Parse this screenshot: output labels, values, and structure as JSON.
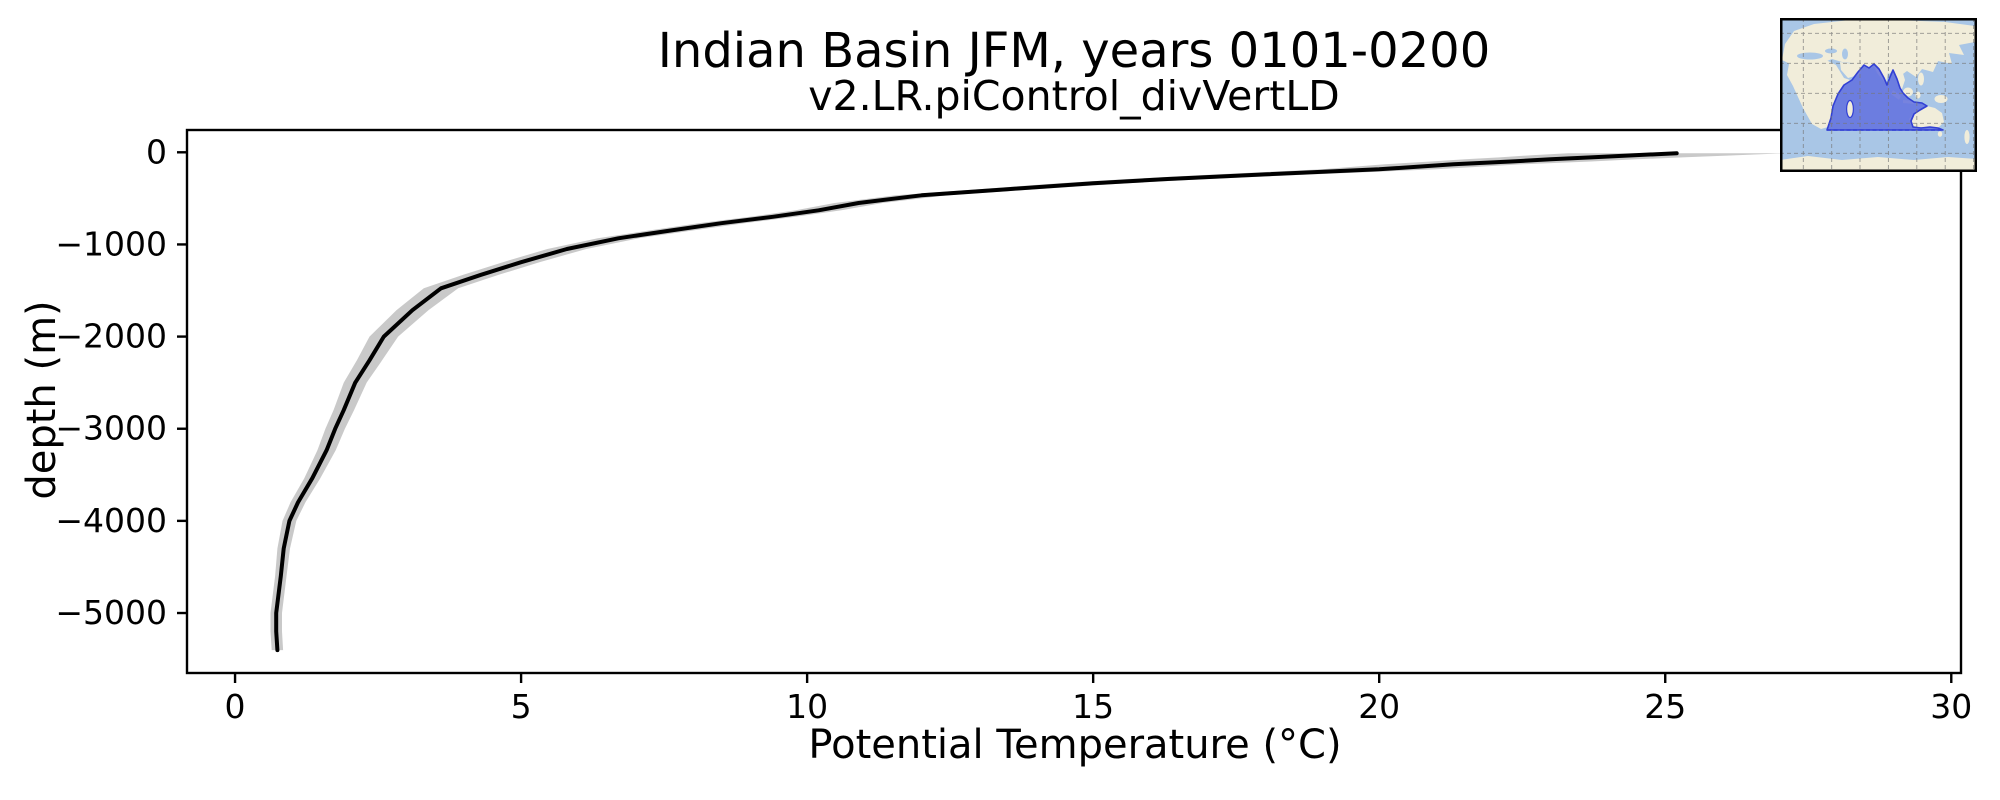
{
  "chart_data": {
    "type": "line",
    "title": "Indian Basin JFM, years 0101-0200",
    "subtitle": "v2.LR.piControl_divVertLD",
    "xlabel": "Potential Temperature (°C)",
    "ylabel": "depth (m)",
    "xlim": [
      -0.84,
      30.17
    ],
    "ylim": [
      -5651,
      242
    ],
    "xticks": [
      0,
      5,
      10,
      15,
      20,
      25,
      30
    ],
    "yticks": [
      0,
      -1000,
      -2000,
      -3000,
      -4000,
      -5000
    ],
    "grid": false,
    "legend_position": "none",
    "line_color": "#000000",
    "band_color": "#c9c9c9",
    "series": [
      {
        "name": "mean potential temperature profile",
        "depth_m": [
          -11,
          -30,
          -55,
          -76,
          -100,
          -130,
          -185,
          -240,
          -290,
          -335,
          -400,
          -467,
          -550,
          -629,
          -700,
          -770,
          -850,
          -933,
          -1050,
          -1193,
          -1330,
          -1476,
          -1714,
          -2000,
          -2257,
          -2500,
          -2799,
          -3000,
          -3233,
          -3537,
          -3800,
          -4000,
          -4300,
          -4600,
          -5000,
          -5200,
          -5403
        ],
        "temp_c": [
          25.2,
          24.5,
          23.7,
          23.0,
          22.3,
          21.3,
          20.0,
          18.0,
          16.3,
          15.0,
          13.5,
          12.0,
          10.9,
          10.2,
          9.4,
          8.5,
          7.6,
          6.7,
          5.8,
          5.0,
          4.3,
          3.6,
          3.1,
          2.6,
          2.35,
          2.1,
          1.9,
          1.75,
          1.6,
          1.35,
          1.1,
          0.95,
          0.85,
          0.8,
          0.72,
          0.72,
          0.74
        ]
      },
      {
        "name": "plus-minus one standard deviation band",
        "depth_m": [
          -11,
          -30,
          -55,
          -76,
          -100,
          -130,
          -185,
          -240,
          -290,
          -335,
          -400,
          -467,
          -550,
          -629,
          -700,
          -770,
          -850,
          -933,
          -1050,
          -1193,
          -1330,
          -1476,
          -1714,
          -2000,
          -2257,
          -2500,
          -2799,
          -3000,
          -3233,
          -3537,
          -3800,
          -4000,
          -4300,
          -4600,
          -5000,
          -5200,
          -5403
        ],
        "temp_std_c": [
          1.9,
          1.8,
          1.6,
          1.5,
          1.4,
          1.2,
          1.0,
          0.85,
          0.7,
          0.6,
          0.5,
          0.45,
          0.42,
          0.4,
          0.4,
          0.4,
          0.38,
          0.36,
          0.34,
          0.32,
          0.31,
          0.3,
          0.28,
          0.25,
          0.22,
          0.2,
          0.18,
          0.17,
          0.16,
          0.14,
          0.13,
          0.12,
          0.11,
          0.1,
          0.1,
          0.1,
          0.1
        ]
      }
    ],
    "inset_map": {
      "region": "Indian Basin",
      "description": "world map inset with Indian Ocean basin highlighted",
      "ocean_color": "#a9c6e6",
      "land_color": "#f1edda",
      "highlight_fill": "#6170de",
      "highlight_outline": "#3240d4",
      "gridline_color": "#777777"
    }
  }
}
